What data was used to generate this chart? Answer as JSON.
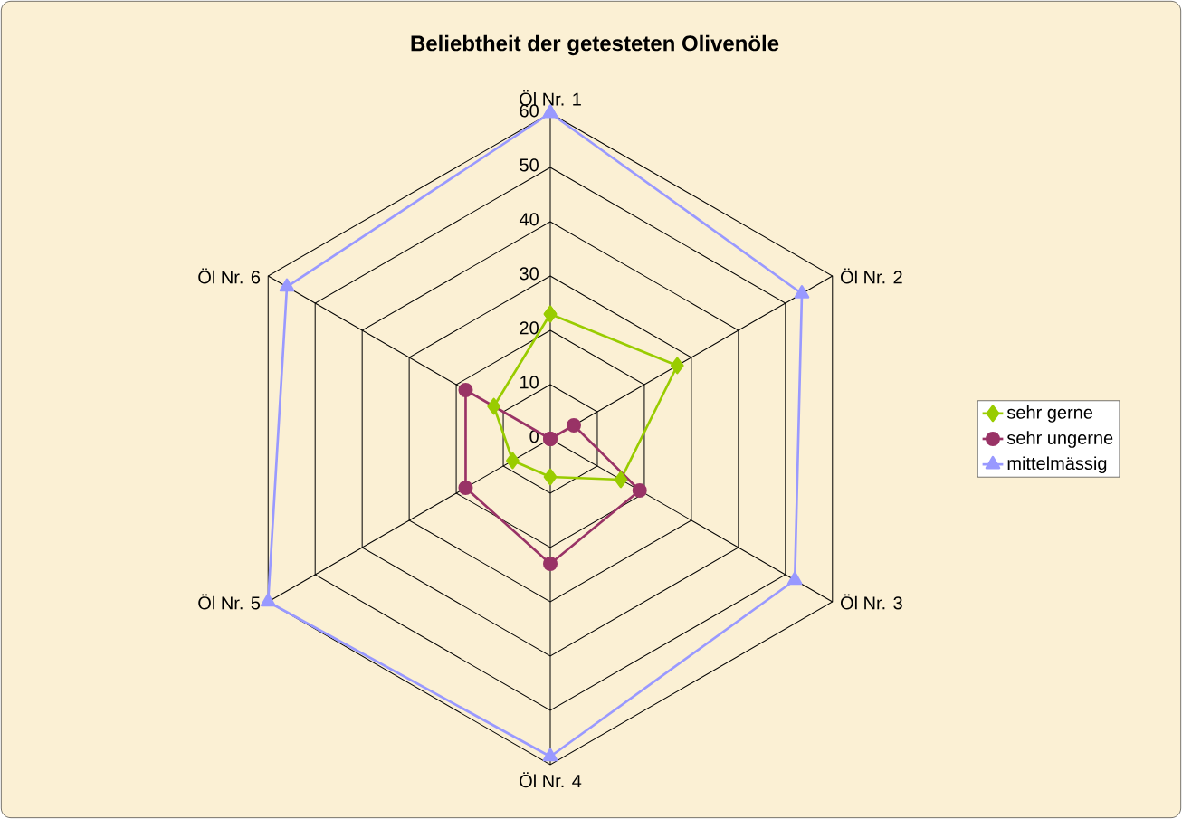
{
  "chart_data": {
    "type": "radar",
    "title": "Beliebtheit der getesteten Olivenöle",
    "categories": [
      "Öl Nr. 1",
      "Öl Nr. 2",
      "Öl Nr. 3",
      "Öl Nr. 4",
      "Öl Nr. 5",
      "Öl Nr. 6"
    ],
    "series": [
      {
        "name": "sehr gerne",
        "color": "#99cc00",
        "marker": "diamond",
        "values": [
          23,
          27,
          15,
          7,
          8,
          12
        ]
      },
      {
        "name": "sehr ungerne",
        "color": "#993366",
        "marker": "circle",
        "values": [
          0,
          5,
          19,
          23,
          18,
          18
        ]
      },
      {
        "name": "mittelmässig",
        "color": "#9999ff",
        "marker": "triangle",
        "values": [
          60,
          53.5,
          52,
          58.5,
          60,
          56
        ]
      }
    ],
    "ylim": [
      0,
      60
    ],
    "yticks": [
      0,
      10,
      20,
      30,
      40,
      50,
      60
    ],
    "grid": true,
    "legend": "right"
  }
}
